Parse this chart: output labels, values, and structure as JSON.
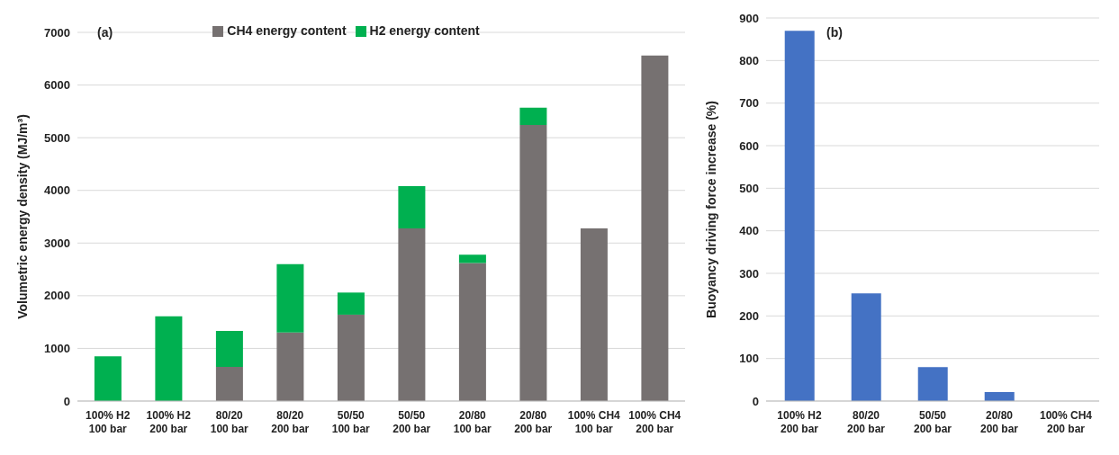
{
  "chart_data": [
    {
      "type": "bar",
      "annotations": [
        "(a)"
      ],
      "ylabel": "Volumetric energy density (MJ/m³)",
      "categories": [
        "100% H2\n100 bar",
        "100% H2\n200 bar",
        "80/20\n100 bar",
        "80/20\n200 bar",
        "50/50\n100 bar",
        "50/50\n200 bar",
        "20/80\n100 bar",
        "20/80\n200 bar",
        "100% CH4\n100 bar",
        "100% CH4\n200 bar"
      ],
      "stacked": true,
      "series": [
        {
          "name": "CH4 energy content",
          "color": "#767171",
          "values": [
            0,
            0,
            650,
            1300,
            1640,
            3280,
            2620,
            5240,
            3280,
            6560
          ]
        },
        {
          "name": "H2 energy content",
          "color": "#00b050",
          "values": [
            850,
            1610,
            680,
            1300,
            420,
            800,
            160,
            330,
            0,
            0
          ]
        }
      ],
      "ylim": [
        0,
        7000
      ],
      "yticks": [
        0,
        1000,
        2000,
        3000,
        4000,
        5000,
        6000,
        7000
      ],
      "grid": "y",
      "legend": "top"
    },
    {
      "type": "bar",
      "annotations": [
        "(b)"
      ],
      "ylabel": "Buoyancy driving force increase (%)",
      "categories": [
        "100% H2\n200 bar",
        "80/20\n200 bar",
        "50/50\n200 bar",
        "20/80\n200 bar",
        "100% CH4\n200 bar"
      ],
      "series": [
        {
          "color": "#4472c4",
          "values": [
            870,
            253,
            80,
            21,
            0
          ]
        }
      ],
      "ylim": [
        0,
        900
      ],
      "yticks": [
        0,
        100,
        200,
        300,
        400,
        500,
        600,
        700,
        800,
        900
      ],
      "grid": "y"
    }
  ]
}
